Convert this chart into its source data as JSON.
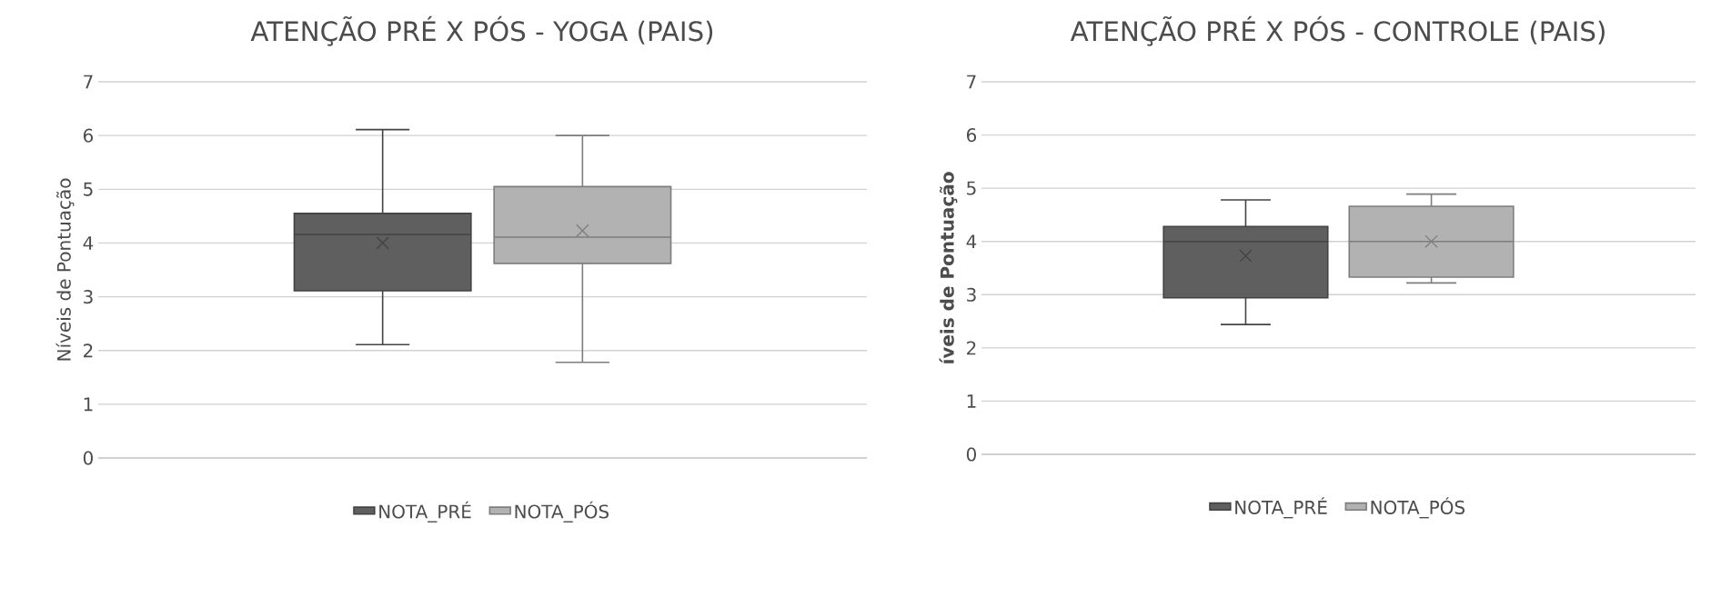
{
  "chart_data": [
    {
      "type": "box",
      "title": "ATENÇÃO PRÉ X PÓS - YOGA (PAIS)",
      "ylabel": "Níveis de Pontuação",
      "categories": [
        null
      ],
      "ylim": [
        0,
        7
      ],
      "yticks": [
        0,
        1,
        2,
        3,
        4,
        5,
        6,
        7
      ],
      "grid": "y",
      "legend": "bottom",
      "series": [
        {
          "name": "NOTA_PRÉ",
          "color": "#5f5f5f",
          "boxes": [
            {
              "low": 2.11,
              "q1": 3.11,
              "median": 4.16,
              "q3": 4.55,
              "high": 6.11,
              "mean": 4.0
            }
          ]
        },
        {
          "name": "NOTA_PÓS",
          "color": "#b2b2b2",
          "boxes": [
            {
              "low": 1.78,
              "q1": 3.62,
              "median": 4.11,
              "q3": 5.05,
              "high": 6.0,
              "mean": 4.23
            }
          ]
        }
      ]
    },
    {
      "type": "box",
      "title": "ATENÇÃO PRÉ X PÓS - CONTROLE (PAIS)",
      "ylabel": "íveis de Pontuação",
      "categories": [
        null
      ],
      "ylim": [
        0,
        7
      ],
      "yticks": [
        0,
        1,
        2,
        3,
        4,
        5,
        6,
        7
      ],
      "grid": "y",
      "legend": "bottom",
      "series": [
        {
          "name": "NOTA_PRÉ",
          "color": "#5f5f5f",
          "boxes": [
            {
              "low": 2.44,
              "q1": 2.94,
              "median": 4.0,
              "q3": 4.28,
              "high": 4.78,
              "mean": 3.73
            }
          ]
        },
        {
          "name": "NOTA_PÓS",
          "color": "#b2b2b2",
          "boxes": [
            {
              "low": 3.22,
              "q1": 3.33,
              "median": 4.0,
              "q3": 4.66,
              "high": 4.89,
              "mean": 4.0
            }
          ]
        }
      ]
    }
  ]
}
